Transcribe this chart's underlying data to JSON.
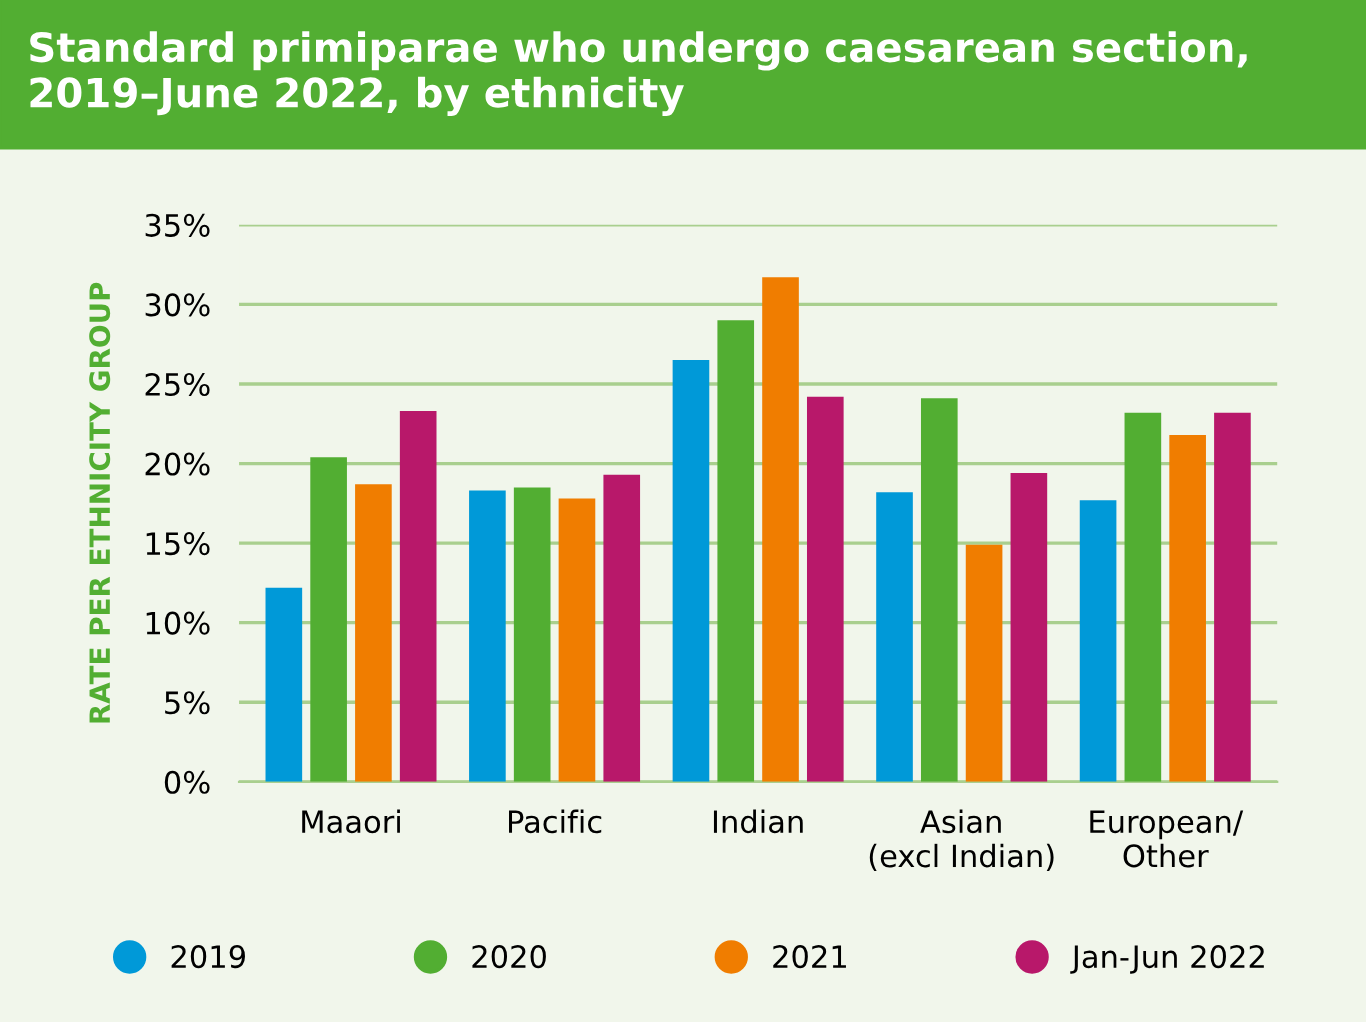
{
  "chart_data": {
    "type": "bar",
    "title": "Standard primiparae who undergo caesarean section,\n2019–June 2022, by ethnicity",
    "ylabel": "RATE PER ETHNICITY GROUP",
    "categories": [
      "Maaori",
      "Pacific",
      "Indian",
      "Asian\n(excl Indian)",
      "European/\nOther"
    ],
    "series": [
      {
        "name": "2019",
        "color": "#0099d8",
        "values": [
          12.2,
          18.3,
          26.5,
          18.2,
          17.7
        ]
      },
      {
        "name": "2020",
        "color": "#52ae32",
        "values": [
          20.4,
          18.5,
          29.0,
          24.1,
          23.2
        ]
      },
      {
        "name": "2021",
        "color": "#f07d00",
        "values": [
          18.7,
          17.8,
          31.7,
          14.9,
          21.8
        ]
      },
      {
        "name": "Jan-Jun 2022",
        "color": "#b8186a",
        "values": [
          23.3,
          19.3,
          24.2,
          19.4,
          23.2
        ]
      }
    ],
    "ylim": [
      0,
      35
    ],
    "yticks": [
      {
        "value": 0,
        "label": "0%"
      },
      {
        "value": 5,
        "label": "5%"
      },
      {
        "value": 10,
        "label": "10%"
      },
      {
        "value": 15,
        "label": "15%"
      },
      {
        "value": 20,
        "label": "20%"
      },
      {
        "value": 25,
        "label": "25%"
      },
      {
        "value": 30,
        "label": "30%"
      },
      {
        "value": 35,
        "label": "35%"
      }
    ],
    "grid": "y",
    "legend": "bottom"
  }
}
